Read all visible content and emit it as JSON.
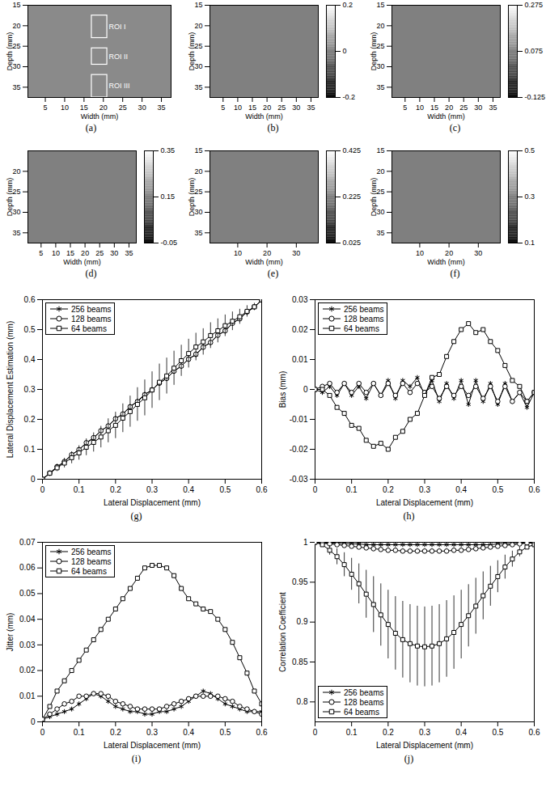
{
  "chart_data": [
    {
      "type": "image",
      "caption": "(a)",
      "x_label": "Width (mm)",
      "y_label": "Depth (mm)",
      "xlim": [
        0.5,
        37.5
      ],
      "ylim": [
        15,
        37.5
      ],
      "xticks": [
        5,
        10,
        15,
        20,
        25,
        30,
        35
      ],
      "yticks": [
        15,
        20,
        25,
        30,
        35
      ],
      "color": "#8a8a8a",
      "rois": [
        {
          "label": "ROI I",
          "x1": 17,
          "x2": 21,
          "y1": 17.5,
          "y2": 23
        },
        {
          "label": "ROI II",
          "x1": 17,
          "x2": 21,
          "y1": 25.5,
          "y2": 29.5
        },
        {
          "label": "ROI III",
          "x1": 17,
          "x2": 21,
          "y1": 32,
          "y2": 37.5
        }
      ]
    },
    {
      "type": "image",
      "caption": "(b)",
      "x_label": "Width (mm)",
      "y_label": "Depth (mm)",
      "xlim": [
        0.5,
        37.5
      ],
      "ylim": [
        15,
        37.5
      ],
      "xticks": [
        5,
        10,
        15,
        20,
        25,
        30,
        35
      ],
      "yticks": [
        15,
        20,
        25,
        30,
        35
      ],
      "value": 0,
      "colorbar_range": [
        -0.2,
        0.2
      ],
      "colorbar_ticks": [
        -0.2,
        0,
        0.2
      ]
    },
    {
      "type": "image",
      "caption": "(c)",
      "x_label": "Width (mm)",
      "y_label": "Depth (mm)",
      "xlim": [
        0.5,
        37.5
      ],
      "ylim": [
        15,
        37.5
      ],
      "xticks": [
        5,
        10,
        15,
        20,
        25,
        30,
        35
      ],
      "yticks": [
        15,
        20,
        25,
        30,
        35
      ],
      "value": 0.075,
      "colorbar_range": [
        -0.125,
        0.275
      ],
      "colorbar_ticks": [
        -0.125,
        0.075,
        0.275
      ]
    },
    {
      "type": "image",
      "caption": "(d)",
      "x_label": "Width (mm)",
      "y_label": "Depth (mm)",
      "xlim": [
        0.5,
        37.5
      ],
      "ylim": [
        15,
        37.5
      ],
      "xticks": [
        5,
        10,
        15,
        20,
        25,
        30,
        35
      ],
      "yticks": [
        20,
        25,
        30,
        35
      ],
      "value": 0.15,
      "colorbar_range": [
        -0.05,
        0.35
      ],
      "colorbar_ticks": [
        -0.05,
        0.15,
        0.35
      ]
    },
    {
      "type": "image",
      "caption": "(e)",
      "x_label": "Width (mm)",
      "y_label": "Depth (mm)",
      "xlim": [
        0.5,
        37.5
      ],
      "ylim": [
        15,
        37.5
      ],
      "xticks": [
        10,
        20,
        30
      ],
      "yticks": [
        15,
        20,
        25,
        30,
        35
      ],
      "value": 0.225,
      "colorbar_range": [
        0.025,
        0.425
      ],
      "colorbar_ticks": [
        0.025,
        0.225,
        0.425
      ]
    },
    {
      "type": "image",
      "caption": "(f)",
      "x_label": "Width (mm)",
      "y_label": "Depth (mm)",
      "xlim": [
        0.5,
        37.5
      ],
      "ylim": [
        15,
        37.5
      ],
      "xticks": [
        10,
        20,
        30
      ],
      "yticks": [
        15,
        20,
        25,
        30,
        35
      ],
      "value": 0.3,
      "colorbar_range": [
        0.1,
        0.5
      ],
      "colorbar_ticks": [
        0.1,
        0.3,
        0.5
      ]
    },
    {
      "type": "line",
      "caption": "(g)",
      "x_label": "Lateral Displacement (mm)",
      "y_label": "Lateral Displacement Estimation (mm)",
      "xlim": [
        0,
        0.6
      ],
      "ylim": [
        0,
        0.6
      ],
      "xticks": [
        0,
        0.1,
        0.2,
        0.3,
        0.4,
        0.5,
        0.6
      ],
      "yticks": [
        0,
        0.1,
        0.2,
        0.3,
        0.4,
        0.5,
        0.6
      ],
      "legend": "upper left",
      "grid": false,
      "x": [
        0,
        0.02,
        0.04,
        0.06,
        0.08,
        0.1,
        0.12,
        0.14,
        0.16,
        0.18,
        0.2,
        0.22,
        0.24,
        0.26,
        0.28,
        0.3,
        0.32,
        0.34,
        0.36,
        0.38,
        0.4,
        0.42,
        0.44,
        0.46,
        0.48,
        0.5,
        0.52,
        0.54,
        0.56,
        0.58,
        0.6
      ],
      "series": [
        {
          "name": "256 beams",
          "color": "#000000",
          "marker": "asterisk",
          "values": [
            0,
            0.019,
            0.041,
            0.058,
            0.082,
            0.098,
            0.121,
            0.137,
            0.162,
            0.178,
            0.203,
            0.217,
            0.243,
            0.261,
            0.284,
            0.298,
            0.323,
            0.336,
            0.362,
            0.377,
            0.403,
            0.415,
            0.443,
            0.456,
            0.482,
            0.495,
            0.522,
            0.536,
            0.559,
            0.574,
            0.599
          ]
        },
        {
          "name": "128 beams",
          "color": "#000000",
          "marker": "circle",
          "values": [
            0,
            0.021,
            0.042,
            0.059,
            0.082,
            0.099,
            0.122,
            0.139,
            0.162,
            0.178,
            0.202,
            0.218,
            0.242,
            0.259,
            0.282,
            0.299,
            0.321,
            0.337,
            0.361,
            0.378,
            0.401,
            0.418,
            0.441,
            0.457,
            0.481,
            0.496,
            0.521,
            0.536,
            0.559,
            0.576,
            0.599
          ]
        },
        {
          "name": "64 beams",
          "color": "#000000",
          "marker": "square",
          "values": [
            0,
            0.02,
            0.038,
            0.054,
            0.072,
            0.088,
            0.107,
            0.123,
            0.141,
            0.162,
            0.18,
            0.204,
            0.226,
            0.25,
            0.272,
            0.298,
            0.324,
            0.345,
            0.371,
            0.396,
            0.42,
            0.442,
            0.459,
            0.48,
            0.496,
            0.513,
            0.528,
            0.543,
            0.561,
            0.576,
            0.599
          ],
          "errors": [
            0.001,
            0.006,
            0.012,
            0.016,
            0.02,
            0.024,
            0.028,
            0.032,
            0.036,
            0.04,
            0.044,
            0.048,
            0.052,
            0.056,
            0.06,
            0.061,
            0.061,
            0.06,
            0.057,
            0.052,
            0.048,
            0.046,
            0.044,
            0.043,
            0.04,
            0.036,
            0.031,
            0.025,
            0.019,
            0.012,
            0.007
          ]
        }
      ]
    },
    {
      "type": "line",
      "caption": "(h)",
      "x_label": "Lateral Displacement (mm)",
      "y_label": "Bias (mm)",
      "xlim": [
        0,
        0.6
      ],
      "ylim": [
        -0.03,
        0.03
      ],
      "xticks": [
        0,
        0.1,
        0.2,
        0.3,
        0.4,
        0.5,
        0.6
      ],
      "yticks": [
        -0.03,
        -0.02,
        -0.01,
        0,
        0.01,
        0.02,
        0.03
      ],
      "legend": "upper left",
      "grid": false,
      "x": [
        0,
        0.02,
        0.04,
        0.06,
        0.08,
        0.1,
        0.12,
        0.14,
        0.16,
        0.18,
        0.2,
        0.22,
        0.24,
        0.26,
        0.28,
        0.3,
        0.32,
        0.34,
        0.36,
        0.38,
        0.4,
        0.42,
        0.44,
        0.46,
        0.48,
        0.5,
        0.52,
        0.54,
        0.56,
        0.58,
        0.6
      ],
      "series": [
        {
          "name": "256 beams",
          "color": "#000000",
          "marker": "asterisk",
          "values": [
            0,
            -0.001,
            0.001,
            -0.002,
            0.002,
            -0.002,
            0.001,
            -0.003,
            0.002,
            -0.002,
            0.003,
            -0.003,
            0.003,
            0.001,
            0.004,
            -0.002,
            0.003,
            -0.004,
            0.002,
            -0.003,
            0.003,
            -0.005,
            0.003,
            -0.004,
            0.002,
            -0.005,
            0.002,
            -0.004,
            -0.001,
            -0.006,
            -0.001
          ]
        },
        {
          "name": "128 beams",
          "color": "#000000",
          "marker": "circle",
          "values": [
            0,
            0.001,
            0.002,
            -0.001,
            0.002,
            -0.001,
            0.002,
            -0.001,
            0.002,
            -0.002,
            0.002,
            -0.002,
            0.002,
            -0.001,
            0.002,
            -0.001,
            0.001,
            -0.003,
            0.001,
            -0.002,
            0.001,
            -0.002,
            0.001,
            -0.003,
            0.001,
            -0.004,
            0.001,
            -0.004,
            -0.001,
            -0.004,
            -0.001
          ]
        },
        {
          "name": "64 beams",
          "color": "#000000",
          "marker": "square",
          "values": [
            0,
            0,
            -0.002,
            -0.006,
            -0.008,
            -0.012,
            -0.013,
            -0.017,
            -0.019,
            -0.018,
            -0.02,
            -0.016,
            -0.014,
            -0.01,
            -0.008,
            -0.002,
            0.004,
            0.005,
            0.011,
            0.016,
            0.02,
            0.022,
            0.019,
            0.02,
            0.016,
            0.013,
            0.008,
            0.003,
            0.001,
            -0.004,
            -0.001
          ]
        }
      ]
    },
    {
      "type": "line",
      "caption": "(i)",
      "x_label": "Lateral Displacement (mm)",
      "y_label": "Jitter (mm)",
      "xlim": [
        0,
        0.6
      ],
      "ylim": [
        0,
        0.07
      ],
      "xticks": [
        0,
        0.1,
        0.2,
        0.3,
        0.4,
        0.5,
        0.6
      ],
      "yticks": [
        0,
        0.01,
        0.02,
        0.03,
        0.04,
        0.05,
        0.06,
        0.07
      ],
      "legend": "upper left",
      "grid": false,
      "x": [
        0,
        0.02,
        0.04,
        0.06,
        0.08,
        0.1,
        0.12,
        0.14,
        0.16,
        0.18,
        0.2,
        0.22,
        0.24,
        0.26,
        0.28,
        0.3,
        0.32,
        0.34,
        0.36,
        0.38,
        0.4,
        0.42,
        0.44,
        0.46,
        0.48,
        0.5,
        0.52,
        0.54,
        0.56,
        0.58,
        0.6
      ],
      "series": [
        {
          "name": "256 beams",
          "color": "#000000",
          "marker": "asterisk",
          "values": [
            0.001,
            0.002,
            0.003,
            0.004,
            0.005,
            0.007,
            0.009,
            0.011,
            0.01,
            0.008,
            0.006,
            0.005,
            0.004,
            0.004,
            0.003,
            0.003,
            0.004,
            0.004,
            0.005,
            0.006,
            0.008,
            0.01,
            0.012,
            0.011,
            0.009,
            0.007,
            0.006,
            0.005,
            0.004,
            0.004,
            0.004
          ]
        },
        {
          "name": "128 beams",
          "color": "#000000",
          "marker": "circle",
          "values": [
            0.001,
            0.003,
            0.005,
            0.007,
            0.008,
            0.01,
            0.01,
            0.011,
            0.011,
            0.01,
            0.008,
            0.007,
            0.006,
            0.005,
            0.005,
            0.005,
            0.005,
            0.006,
            0.007,
            0.008,
            0.009,
            0.01,
            0.01,
            0.01,
            0.01,
            0.009,
            0.008,
            0.006,
            0.005,
            0.004,
            0.003
          ]
        },
        {
          "name": "64 beams",
          "color": "#000000",
          "marker": "square",
          "values": [
            0.001,
            0.006,
            0.012,
            0.016,
            0.02,
            0.024,
            0.028,
            0.032,
            0.036,
            0.04,
            0.044,
            0.048,
            0.052,
            0.056,
            0.06,
            0.061,
            0.061,
            0.06,
            0.057,
            0.052,
            0.048,
            0.046,
            0.044,
            0.043,
            0.04,
            0.036,
            0.031,
            0.025,
            0.019,
            0.012,
            0.007
          ]
        }
      ]
    },
    {
      "type": "line",
      "caption": "(j)",
      "x_label": "Lateral Displacement (mm)",
      "y_label": "Correlation Coefficient",
      "xlim": [
        0,
        0.6
      ],
      "ylim": [
        0.775,
        1
      ],
      "xticks": [
        0,
        0.1,
        0.2,
        0.3,
        0.4,
        0.5,
        0.6
      ],
      "yticks": [
        0.8,
        0.85,
        0.9,
        0.95,
        1
      ],
      "legend": "lower left",
      "grid": false,
      "x": [
        0,
        0.02,
        0.04,
        0.06,
        0.08,
        0.1,
        0.12,
        0.14,
        0.16,
        0.18,
        0.2,
        0.22,
        0.24,
        0.26,
        0.28,
        0.3,
        0.32,
        0.34,
        0.36,
        0.38,
        0.4,
        0.42,
        0.44,
        0.46,
        0.48,
        0.5,
        0.52,
        0.54,
        0.56,
        0.58,
        0.6
      ],
      "series": [
        {
          "name": "256 beams",
          "color": "#000000",
          "marker": "asterisk",
          "values": [
            1,
            0.999,
            0.999,
            0.999,
            0.998,
            0.998,
            0.998,
            0.997,
            0.997,
            0.997,
            0.997,
            0.997,
            0.997,
            0.997,
            0.997,
            0.997,
            0.997,
            0.997,
            0.997,
            0.997,
            0.997,
            0.997,
            0.997,
            0.997,
            0.997,
            0.998,
            0.998,
            0.998,
            0.999,
            0.999,
            0.999
          ]
        },
        {
          "name": "128 beams",
          "color": "#000000",
          "marker": "circle",
          "values": [
            1,
            0.999,
            0.998,
            0.997,
            0.996,
            0.995,
            0.994,
            0.993,
            0.992,
            0.991,
            0.99,
            0.99,
            0.989,
            0.989,
            0.989,
            0.989,
            0.989,
            0.989,
            0.989,
            0.99,
            0.99,
            0.991,
            0.992,
            0.993,
            0.994,
            0.995,
            0.996,
            0.997,
            0.998,
            0.999,
            0.999
          ]
        },
        {
          "name": "64 beams",
          "color": "#000000",
          "marker": "square",
          "values": [
            1,
            0.997,
            0.99,
            0.982,
            0.972,
            0.96,
            0.948,
            0.935,
            0.922,
            0.909,
            0.897,
            0.886,
            0.878,
            0.873,
            0.87,
            0.869,
            0.87,
            0.873,
            0.879,
            0.887,
            0.897,
            0.908,
            0.92,
            0.933,
            0.945,
            0.957,
            0.969,
            0.979,
            0.988,
            0.994,
            0.997
          ],
          "errors": [
            0,
            0.002,
            0.006,
            0.01,
            0.015,
            0.02,
            0.025,
            0.03,
            0.035,
            0.039,
            0.043,
            0.046,
            0.048,
            0.049,
            0.05,
            0.05,
            0.05,
            0.049,
            0.048,
            0.046,
            0.043,
            0.039,
            0.035,
            0.03,
            0.025,
            0.02,
            0.015,
            0.01,
            0.006,
            0.003,
            0.001
          ]
        }
      ]
    }
  ]
}
